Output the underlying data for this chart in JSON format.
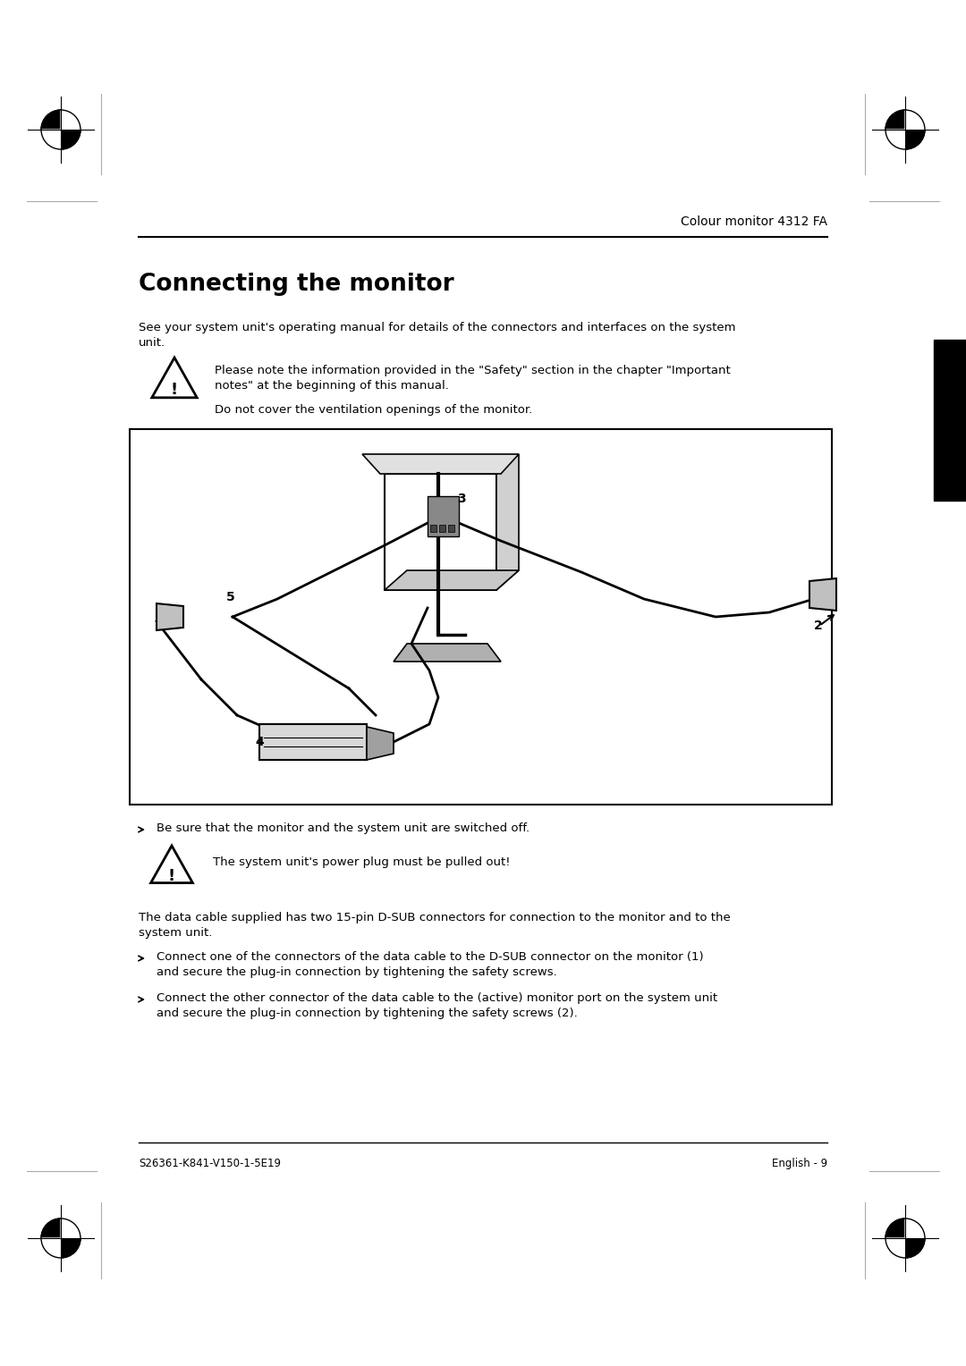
{
  "page_width": 10.8,
  "page_height": 15.28,
  "bg_color": "#ffffff",
  "header_text": "Colour monitor 4312 FA",
  "section_title": "Connecting the monitor",
  "intro_text": "See your system unit's operating manual for details of the connectors and interfaces on the system\nunit.",
  "warning1_line1": "Please note the information provided in the \"Safety\" section in the chapter \"Important",
  "warning1_line2": "notes\" at the beginning of this manual.",
  "warning1_line3": "Do not cover the ventilation openings of the monitor.",
  "bullet1": "Be sure that the monitor and the system unit are switched off.",
  "warning2_text": "The system unit's power plug must be pulled out!",
  "para_text": "The data cable supplied has two 15-pin D-SUB connectors for connection to the monitor and to the\nsystem unit.",
  "bullet2_line1": "Connect one of the connectors of the data cable to the D-SUB connector on the monitor (1)",
  "bullet2_line2": "and secure the plug-in connection by tightening the safety screws.",
  "bullet3_line1": "Connect the other connector of the data cable to the (active) monitor port on the system unit",
  "bullet3_line2": "and secure the plug-in connection by tightening the safety screws (2).",
  "footer_left": "S26361-K841-V150-1-5E19",
  "footer_right": "English - 9",
  "tab_indicator_color": "#1a1a1a"
}
